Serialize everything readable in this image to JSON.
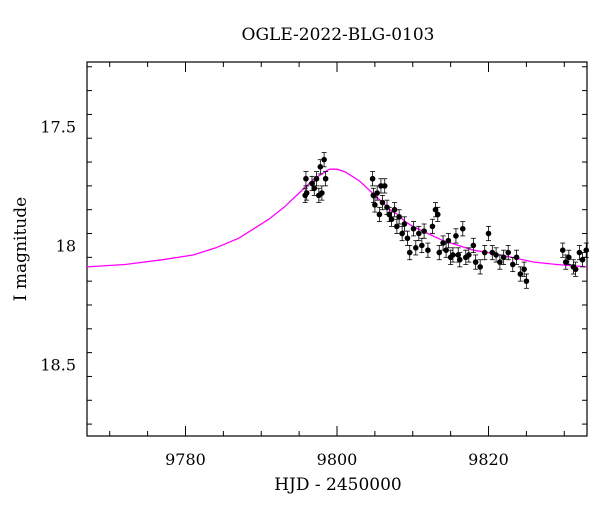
{
  "chart_data": {
    "type": "scatter",
    "title": "OGLE-2022-BLG-0103",
    "xlabel": "HJD - 2450000",
    "ylabel": "I magnitude",
    "xlim": [
      9767,
      9833
    ],
    "ylim": [
      18.8,
      17.23
    ],
    "y_inverted": true,
    "grid": false,
    "xticks_labeled": [
      "9780",
      "9800",
      "9820"
    ],
    "xtick_values": [
      9780,
      9800,
      9820
    ],
    "yticks_labeled": [
      "17.5",
      "18",
      "18.5"
    ],
    "ytick_values": [
      17.5,
      18.0,
      18.5
    ],
    "series": [
      {
        "type": "scatter",
        "color": "#000000",
        "x": [
          9795.8,
          9795.9,
          9796.0,
          9796.7,
          9797.0,
          9797.3,
          9797.6,
          9797.8,
          9798.0,
          9798.3,
          9798.5,
          9804.7,
          9804.8,
          9805.0,
          9805.3,
          9805.6,
          9805.8,
          9806.0,
          9806.3,
          9806.6,
          9806.9,
          9807.2,
          9807.6,
          9807.9,
          9808.2,
          9808.6,
          9808.9,
          9809.3,
          9809.6,
          9810.1,
          9810.4,
          9810.8,
          9811.2,
          9811.5,
          9812.0,
          9812.6,
          9813.0,
          9813.3,
          9813.5,
          9814.0,
          9814.4,
          9814.7,
          9815.0,
          9815.3,
          9815.7,
          9816.0,
          9816.2,
          9816.6,
          9817.0,
          9817.4,
          9818.0,
          9818.3,
          9818.9,
          9819.5,
          9820.0,
          9820.5,
          9821.0,
          9821.5,
          9822.0,
          9822.6,
          9823.2,
          9823.7,
          9824.2,
          9824.7,
          9825.0,
          9829.8,
          9830.2,
          9830.6,
          9831.2,
          9831.5,
          9832.0,
          9832.4,
          9832.9
        ],
        "y": [
          17.79,
          17.72,
          17.78,
          17.74,
          17.76,
          17.72,
          17.79,
          17.67,
          17.78,
          17.64,
          17.72,
          17.72,
          17.79,
          17.83,
          17.78,
          17.87,
          17.75,
          17.82,
          17.75,
          17.84,
          17.87,
          17.89,
          17.85,
          17.92,
          17.88,
          17.95,
          17.91,
          17.97,
          18.03,
          17.93,
          18.01,
          17.95,
          18.0,
          17.94,
          18.02,
          17.92,
          17.85,
          17.87,
          18.03,
          17.99,
          18.02,
          17.98,
          18.05,
          18.04,
          17.96,
          18.04,
          18.06,
          17.93,
          18.05,
          18.04,
          18.0,
          18.07,
          18.09,
          18.03,
          17.95,
          18.03,
          18.04,
          18.07,
          18.05,
          18.03,
          18.08,
          18.05,
          18.12,
          18.1,
          18.15,
          18.02,
          18.07,
          18.05,
          18.09,
          18.1,
          18.03,
          18.06,
          18.02
        ],
        "yerr": 0.03
      },
      {
        "type": "line",
        "color": "#ff00ff",
        "x": [
          9767,
          9772,
          9777,
          9781,
          9784,
          9787,
          9789,
          9791,
          9793,
          9794,
          9795,
          9796,
          9797,
          9798,
          9799,
          9800,
          9801,
          9802,
          9803,
          9804,
          9805,
          9806,
          9807,
          9808,
          9809,
          9810,
          9812,
          9814,
          9816,
          9818,
          9820,
          9823,
          9826,
          9829,
          9833
        ],
        "y": [
          18.09,
          18.08,
          18.06,
          18.04,
          18.01,
          17.97,
          17.93,
          17.89,
          17.84,
          17.81,
          17.78,
          17.75,
          17.72,
          17.7,
          17.68,
          17.68,
          17.69,
          17.71,
          17.73,
          17.76,
          17.79,
          17.82,
          17.85,
          17.87,
          17.9,
          17.92,
          17.95,
          17.98,
          18.0,
          18.02,
          18.03,
          18.05,
          18.07,
          18.08,
          18.09
        ]
      }
    ]
  }
}
